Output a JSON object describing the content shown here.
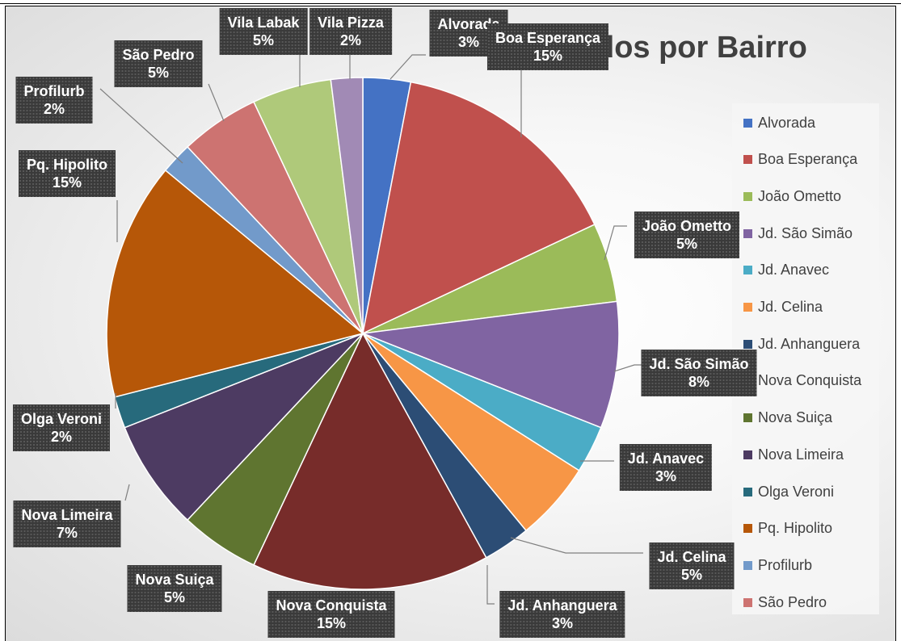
{
  "chart_data": {
    "type": "pie",
    "title": "ndidos por Bairro",
    "legend_position": "right",
    "slices": [
      {
        "name": "Alvorada",
        "value": 3,
        "label": "3%",
        "color": "#4472C4"
      },
      {
        "name": "Boa Esperança",
        "value": 15,
        "label": "15%",
        "color": "#C0504D"
      },
      {
        "name": "João Ometto",
        "value": 5,
        "label": "5%",
        "color": "#9BBB59"
      },
      {
        "name": "Jd. São Simão",
        "value": 8,
        "label": "8%",
        "color": "#8064A2"
      },
      {
        "name": "Jd. Anavec",
        "value": 3,
        "label": "3%",
        "color": "#4BACC6"
      },
      {
        "name": "Jd. Celina",
        "value": 5,
        "label": "5%",
        "color": "#F79646"
      },
      {
        "name": "Jd. Anhanguera",
        "value": 3,
        "label": "3%",
        "color": "#2C4D75"
      },
      {
        "name": "Nova Conquista",
        "value": 15,
        "label": "15%",
        "color": "#772C2A"
      },
      {
        "name": "Nova Suiça",
        "value": 5,
        "label": "5%",
        "color": "#5F7530"
      },
      {
        "name": "Nova Limeira",
        "value": 7,
        "label": "7%",
        "color": "#4D3B62"
      },
      {
        "name": "Olga Veroni",
        "value": 2,
        "label": "2%",
        "color": "#276A7C"
      },
      {
        "name": "Pq. Hipolito",
        "value": 15,
        "label": "15%",
        "color": "#B65708"
      },
      {
        "name": "Profilurb",
        "value": 2,
        "label": "2%",
        "color": "#729ACA"
      },
      {
        "name": "São Pedro",
        "value": 5,
        "label": "5%",
        "color": "#CD7371"
      },
      {
        "name": "Vila Labak",
        "value": 5,
        "label": "5%",
        "color": "#AFC97A"
      },
      {
        "name": "Vila Pizza",
        "value": 2,
        "label": "2%",
        "color": "#A18AB5"
      }
    ],
    "legend": [
      "Alvorada",
      "Boa Esperança",
      "João Ometto",
      "Jd. São Simão",
      "Jd. Anavec",
      "Jd. Celina",
      "Jd. Anhanguera",
      "Nova Conquista",
      "Nova Suiça",
      "Nova Limeira",
      "Olga Veroni",
      "Pq. Hipolito",
      "Profilurb",
      "São Pedro"
    ]
  }
}
